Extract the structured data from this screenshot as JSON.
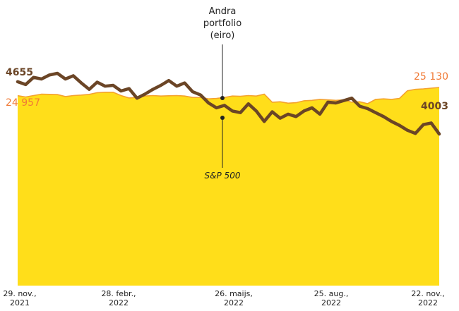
{
  "chart_data": {
    "type": "area",
    "x_labels": [
      [
        "29. nov.,",
        "2021"
      ],
      [
        "28. febr.,",
        "2022"
      ],
      [
        "26. maijs,",
        "2022"
      ],
      [
        "25. aug.,",
        "2022"
      ],
      [
        "22. nov.,",
        "2022"
      ]
    ],
    "annotation_top": [
      "Andra",
      "portfolio",
      "(eiro)"
    ],
    "annotation_bottom": "S&P 500",
    "series": [
      {
        "name": "Andra portfolio (eiro)",
        "color": "#ffde1a",
        "line_color": "#f4a22e",
        "start_label": "24 957",
        "end_label": "25 130",
        "values": [
          24957,
          24930,
          24960,
          24990,
          24985,
          24980,
          24940,
          24960,
          24970,
          24985,
          25020,
          25030,
          25030,
          24960,
          24910,
          24920,
          24950,
          24960,
          24950,
          24955,
          24960,
          24950,
          24920,
          24920,
          24890,
          24900,
          24920,
          24950,
          24945,
          24960,
          24950,
          24990,
          24820,
          24830,
          24800,
          24810,
          24850,
          24860,
          24880,
          24870,
          24860,
          24870,
          24820,
          24830,
          24790,
          24880,
          24890,
          24880,
          24900,
          25060,
          25090,
          25100,
          25115,
          25130
        ]
      },
      {
        "name": "S&P 500",
        "color": "#6b4526",
        "start_label": "4655",
        "end_label": "4003",
        "values": [
          4655,
          4620,
          4710,
          4690,
          4740,
          4760,
          4690,
          4730,
          4640,
          4560,
          4650,
          4600,
          4610,
          4540,
          4570,
          4450,
          4500,
          4560,
          4610,
          4670,
          4600,
          4640,
          4530,
          4490,
          4390,
          4330,
          4360,
          4290,
          4270,
          4380,
          4290,
          4160,
          4280,
          4200,
          4250,
          4220,
          4290,
          4330,
          4250,
          4400,
          4390,
          4420,
          4450,
          4350,
          4320,
          4270,
          4220,
          4160,
          4110,
          4050,
          4010,
          4120,
          4140,
          4003
        ]
      }
    ]
  }
}
